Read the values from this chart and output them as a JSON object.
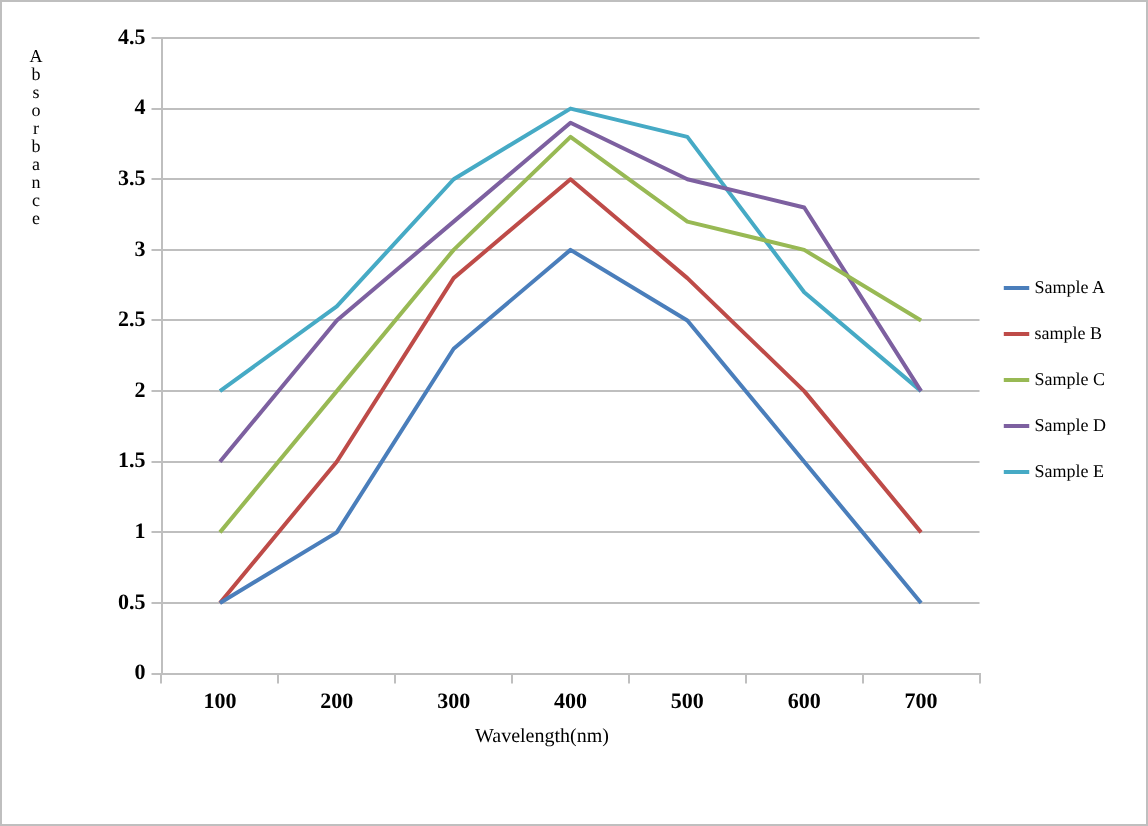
{
  "chart_data": {
    "type": "line",
    "xlabel": "Wavelength(nm)",
    "ylabel": "Absorbance",
    "categories": [
      "100",
      "200",
      "300",
      "400",
      "500",
      "600",
      "700"
    ],
    "ylim": [
      0,
      4.5
    ],
    "yticks": [
      0,
      0.5,
      1,
      1.5,
      2,
      2.5,
      3,
      3.5,
      4,
      4.5
    ],
    "grid": "y",
    "legend": "right",
    "marker": "none",
    "line_style": "solid",
    "series": [
      {
        "name": "Sample A",
        "color": "#4a7ebb",
        "values": [
          0.5,
          1,
          2.3,
          3,
          2.5,
          1.5,
          0.5
        ]
      },
      {
        "name": "sample B",
        "color": "#be4b48",
        "values": [
          0.5,
          1.5,
          2.8,
          3.5,
          2.8,
          2,
          1
        ]
      },
      {
        "name": "Sample C",
        "color": "#98b954",
        "values": [
          1,
          2,
          3,
          3.8,
          3.2,
          3,
          2.5
        ]
      },
      {
        "name": "Sample D",
        "color": "#7d60a0",
        "values": [
          1.5,
          2.5,
          3.2,
          3.9,
          3.5,
          3.3,
          2
        ]
      },
      {
        "name": "Sample E",
        "color": "#46aac5",
        "values": [
          2,
          2.6,
          3.5,
          4,
          3.8,
          2.7,
          2
        ]
      }
    ]
  }
}
